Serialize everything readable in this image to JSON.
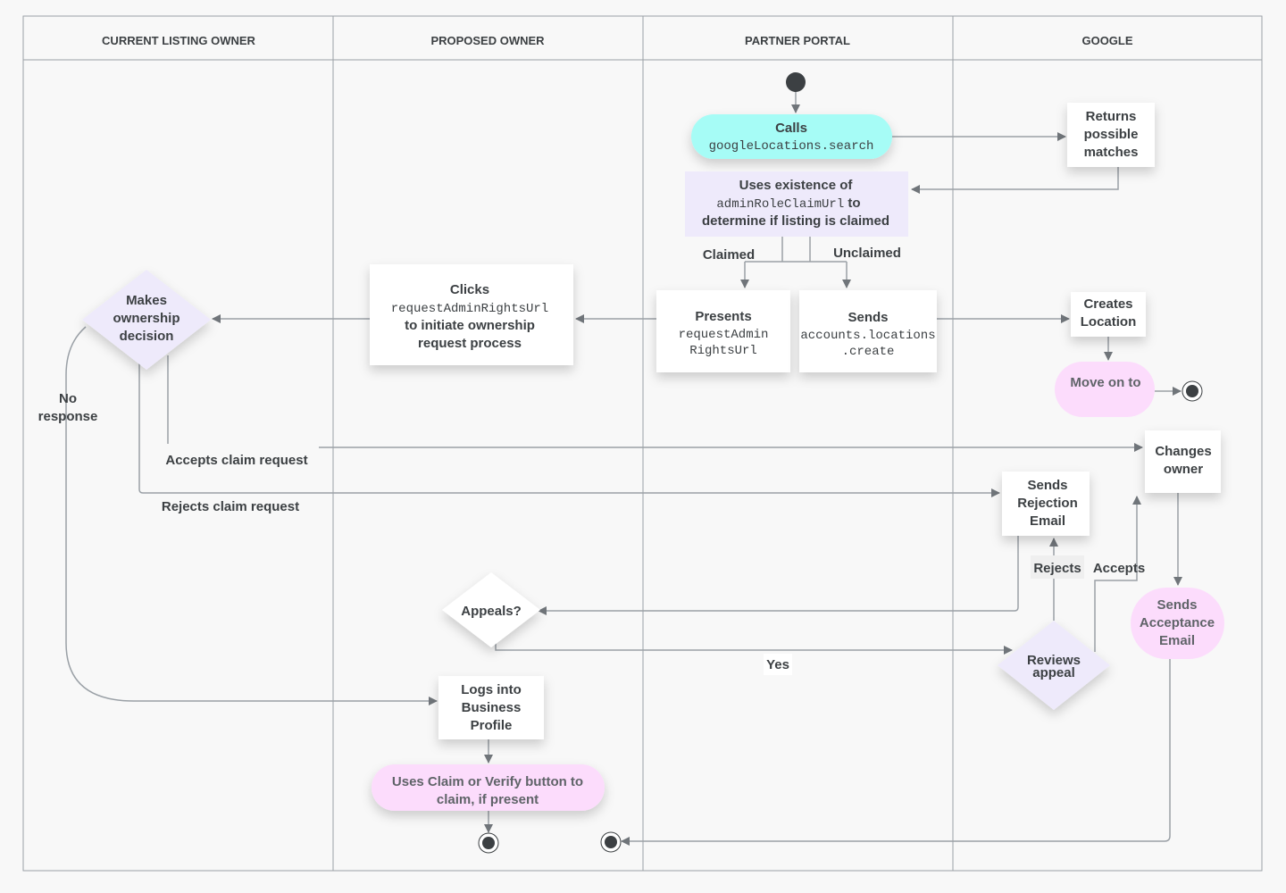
{
  "lanes": [
    "CURRENT LISTING OWNER",
    "PROPOSED OWNER",
    "PARTNER PORTAL",
    "GOOGLE"
  ],
  "colors": {
    "background": "#f8f8f8",
    "lane_border": "#9aa0a6",
    "text": "#3c4043",
    "cyan": "#a6fcf6",
    "lavender": "#eeeafb",
    "pink": "#fcdcfc",
    "edge": "#9aa0a6",
    "arrow": "#70757a"
  },
  "nodes": {
    "calls": [
      "Calls",
      "googleLocations.search"
    ],
    "uses_existence": [
      "Uses existence of",
      "adminRoleClaimUrl",
      "to",
      "determine if listing is claimed"
    ],
    "returns": [
      "Returns",
      "possible",
      "matches"
    ],
    "presents": [
      "Presents",
      "requestAdmin",
      "RightsUrl"
    ],
    "sends_create": [
      "Sends",
      "accounts.locations",
      ".create"
    ],
    "clicks": [
      "Clicks",
      "requestAdminRightsUrl",
      "to initiate ownership",
      "request process"
    ],
    "makes_decision": [
      "Makes",
      "ownership",
      "decision"
    ],
    "creates_location": [
      "Creates",
      "Location"
    ],
    "move_on": [
      "Move on to"
    ],
    "changes_owner": [
      "Changes",
      "owner"
    ],
    "rejection_email": [
      "Sends",
      "Rejection",
      "Email"
    ],
    "acceptance_email": [
      "Sends",
      "Acceptance",
      "Email"
    ],
    "reviews_appeal": [
      "Reviews",
      "appeal"
    ],
    "appeals": [
      "Appeals?"
    ],
    "logs_into": [
      "Logs into",
      "Business",
      "Profile"
    ],
    "uses_claim": [
      "Uses Claim or Verify button to",
      "claim, if present"
    ]
  },
  "edge_labels": {
    "claimed": "Claimed",
    "unclaimed": "Unclaimed",
    "no_response": [
      "No",
      "response"
    ],
    "accepts_claim": "Accepts claim request",
    "rejects_claim": "Rejects claim request",
    "rejects": "Rejects",
    "accepts": "Accepts",
    "yes": "Yes"
  }
}
